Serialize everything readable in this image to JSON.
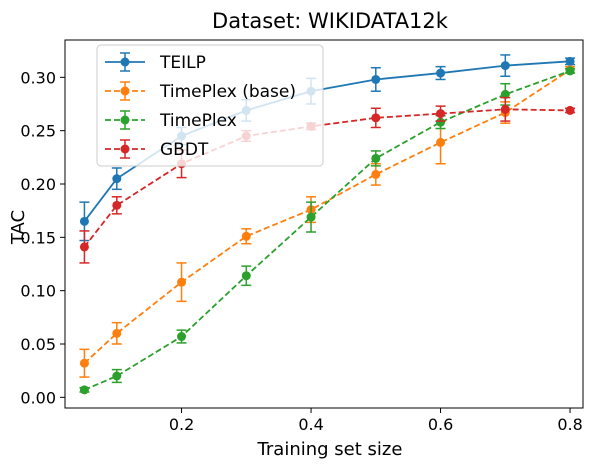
{
  "chart_data": {
    "type": "line",
    "title": "Dataset: WIKIDATA12k",
    "xlabel": "Training set size",
    "ylabel": "TAC",
    "xlim": [
      0.02,
      0.82
    ],
    "ylim": [
      -0.01,
      0.335
    ],
    "xticks": [
      0.2,
      0.4,
      0.6,
      0.8
    ],
    "xtick_labels": [
      "0.2",
      "0.4",
      "0.6",
      "0.8"
    ],
    "yticks": [
      0.0,
      0.05,
      0.1,
      0.15,
      0.2,
      0.25,
      0.3
    ],
    "ytick_labels": [
      "0.00",
      "0.05",
      "0.10",
      "0.15",
      "0.20",
      "0.25",
      "0.30"
    ],
    "grid": false,
    "legend_position": "upper-left",
    "x": [
      0.05,
      0.1,
      0.2,
      0.3,
      0.4,
      0.5,
      0.6,
      0.7,
      0.8
    ],
    "series": [
      {
        "name": "TEILP",
        "color": "#1f77b4",
        "line_style": "solid",
        "values": [
          0.165,
          0.205,
          0.245,
          0.269,
          0.287,
          0.298,
          0.304,
          0.311,
          0.315
        ],
        "errors": [
          0.018,
          0.01,
          0.008,
          0.01,
          0.012,
          0.011,
          0.006,
          0.01,
          0.003
        ]
      },
      {
        "name": "TimePlex (base)",
        "color": "#ff7f0e",
        "line_style": "dashed",
        "values": [
          0.032,
          0.06,
          0.108,
          0.151,
          0.176,
          0.209,
          0.239,
          0.267,
          0.307
        ],
        "errors": [
          0.013,
          0.01,
          0.018,
          0.007,
          0.012,
          0.01,
          0.02,
          0.01,
          0.003
        ]
      },
      {
        "name": "TimePlex",
        "color": "#2ca02c",
        "line_style": "dashed",
        "values": [
          0.007,
          0.02,
          0.057,
          0.114,
          0.169,
          0.224,
          0.258,
          0.284,
          0.306
        ],
        "errors": [
          0.002,
          0.006,
          0.006,
          0.009,
          0.014,
          0.007,
          0.006,
          0.01,
          0.002
        ]
      },
      {
        "name": "GBDT",
        "color": "#d62728",
        "line_style": "dashed",
        "values": [
          0.141,
          0.18,
          0.219,
          0.245,
          0.254,
          0.262,
          0.266,
          0.27,
          0.269
        ],
        "errors": [
          0.015,
          0.008,
          0.013,
          0.005,
          0.003,
          0.009,
          0.007,
          0.011,
          0.002
        ]
      }
    ]
  }
}
